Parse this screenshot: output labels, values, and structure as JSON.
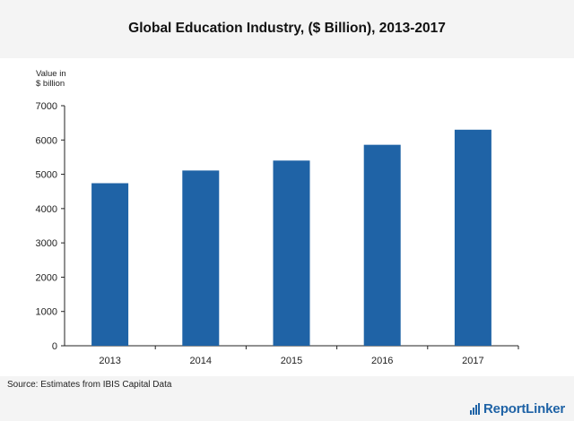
{
  "title": "Global Education Industry, ($ Billion), 2013-2017",
  "source": "Source: Estimates from IBIS Capital Data",
  "brand": {
    "name": "ReportLinker"
  },
  "colors": {
    "bar": "#1f63a6",
    "panel": "#ffffff",
    "band": "#f4f4f4",
    "axis": "#222222"
  },
  "chart_data": {
    "type": "bar",
    "title": "Global Education Industry, ($ Billion), 2013-2017",
    "ylabel": "Value in $ billion",
    "ylabel_lines": [
      "Value in",
      "$ billion"
    ],
    "categories": [
      "2013",
      "2014",
      "2015",
      "2016",
      "2017"
    ],
    "values": [
      4740,
      5110,
      5400,
      5860,
      6300
    ],
    "ylim": [
      0,
      7000
    ],
    "yticks": [
      "0",
      "1000",
      "2000",
      "3000",
      "4000",
      "5000",
      "6000",
      "7000"
    ],
    "grid": false,
    "legend": "none"
  }
}
